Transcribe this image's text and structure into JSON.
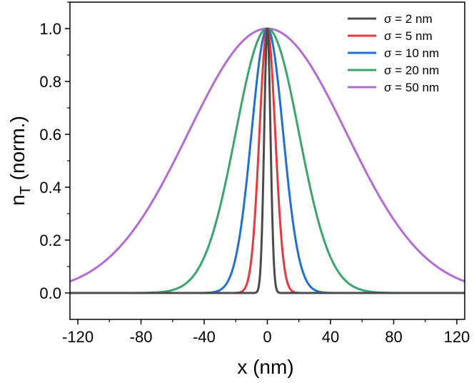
{
  "chart_data": {
    "type": "line",
    "xlabel": "x (nm)",
    "ylabel_main": "n",
    "ylabel_sub": "T",
    "ylabel_rest": " (norm.)",
    "xlim": [
      -125,
      125
    ],
    "ylim": [
      -0.1,
      1.1
    ],
    "xticks": [
      -120,
      -80,
      -40,
      0,
      40,
      80,
      120
    ],
    "yticks": [
      0.0,
      0.2,
      0.4,
      0.6,
      0.8,
      1.0
    ],
    "xtick_labels": [
      "-120",
      "-80",
      "-40",
      "0",
      "40",
      "80",
      "120"
    ],
    "ytick_labels": [
      "0.0",
      "0.2",
      "0.4",
      "0.6",
      "0.8",
      "1.0"
    ],
    "legend_position": "top-right",
    "grid": false,
    "series": [
      {
        "name": "σ = 2 nm",
        "sigma": 2,
        "color": "#4a4a4a"
      },
      {
        "name": "σ = 5 nm",
        "sigma": 5,
        "color": "#e8383d"
      },
      {
        "name": "σ = 10 nm",
        "sigma": 10,
        "color": "#1f6fd6"
      },
      {
        "name": "σ = 20 nm",
        "sigma": 20,
        "color": "#3aa56a"
      },
      {
        "name": "σ = 50 nm",
        "sigma": 50,
        "color": "#b36ad8"
      }
    ]
  }
}
